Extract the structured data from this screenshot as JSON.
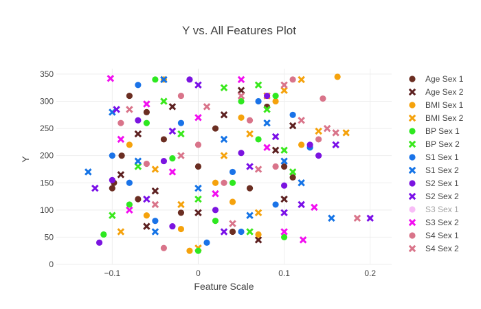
{
  "chart_data": {
    "type": "scatter",
    "title": "Y vs. All Features Plot",
    "xlabel": "Feature Scale",
    "ylabel": "Y",
    "xlim": [
      -0.165,
      0.225
    ],
    "ylim": [
      0,
      360
    ],
    "x_ticks": [
      -0.1,
      0,
      0.1,
      0.2
    ],
    "x_tick_labels": [
      "−0.1",
      "0",
      "0.1",
      "0.2"
    ],
    "y_ticks": [
      0,
      50,
      100,
      150,
      200,
      250,
      300,
      350
    ],
    "y_tick_labels": [
      "0",
      "50",
      "100",
      "150",
      "200",
      "250",
      "300",
      "350"
    ],
    "grid": true,
    "legend_position": "right",
    "series": [
      {
        "name": "Age Sex 1",
        "color": "#6b2e22",
        "symbol": "circle",
        "visible": true,
        "points": [
          [
            -0.098,
            150
          ],
          [
            -0.089,
            200
          ],
          [
            -0.08,
            310
          ],
          [
            -0.06,
            280
          ],
          [
            -0.04,
            230
          ],
          [
            -0.02,
            95
          ],
          [
            0.0,
            180
          ],
          [
            0.02,
            250
          ],
          [
            0.04,
            60
          ],
          [
            0.06,
            140
          ],
          [
            0.08,
            290
          ],
          [
            0.1,
            180
          ],
          [
            -0.1,
            140
          ],
          [
            0.11,
            160
          ],
          [
            -0.07,
            120
          ]
        ]
      },
      {
        "name": "Age Sex 2",
        "color": "#5c2020",
        "symbol": "x",
        "visible": true,
        "points": [
          [
            -0.09,
            165
          ],
          [
            -0.07,
            240
          ],
          [
            -0.05,
            135
          ],
          [
            -0.03,
            290
          ],
          [
            0.0,
            95
          ],
          [
            0.03,
            275
          ],
          [
            0.05,
            320
          ],
          [
            0.07,
            45
          ],
          [
            0.09,
            210
          ],
          [
            0.11,
            255
          ],
          [
            0.1,
            120
          ],
          [
            -0.06,
            70
          ]
        ]
      },
      {
        "name": "BMI Sex 1",
        "color": "#f5a20c",
        "symbol": "circle",
        "visible": true,
        "points": [
          [
            -0.08,
            220
          ],
          [
            -0.06,
            90
          ],
          [
            -0.04,
            340
          ],
          [
            -0.02,
            65
          ],
          [
            0.02,
            150
          ],
          [
            0.04,
            115
          ],
          [
            0.07,
            55
          ],
          [
            0.09,
            300
          ],
          [
            0.12,
            220
          ],
          [
            0.162,
            345
          ],
          [
            -0.01,
            25
          ],
          [
            0.05,
            270
          ]
        ]
      },
      {
        "name": "BMI Sex 2",
        "color": "#f5a20c",
        "symbol": "x",
        "visible": true,
        "points": [
          [
            -0.09,
            60
          ],
          [
            -0.05,
            175
          ],
          [
            0.0,
            30
          ],
          [
            0.03,
            200
          ],
          [
            0.06,
            240
          ],
          [
            0.08,
            310
          ],
          [
            0.1,
            320
          ],
          [
            0.12,
            340
          ],
          [
            0.14,
            245
          ],
          [
            0.172,
            242
          ],
          [
            -0.02,
            110
          ],
          [
            0.07,
            95
          ]
        ]
      },
      {
        "name": "BP Sex 1",
        "color": "#2ee820",
        "symbol": "circle",
        "visible": true,
        "points": [
          [
            -0.11,
            55
          ],
          [
            -0.08,
            110
          ],
          [
            -0.05,
            340
          ],
          [
            -0.03,
            195
          ],
          [
            0.0,
            25
          ],
          [
            0.02,
            80
          ],
          [
            0.05,
            300
          ],
          [
            0.07,
            230
          ],
          [
            0.09,
            310
          ],
          [
            0.1,
            50
          ],
          [
            -0.06,
            260
          ],
          [
            0.04,
            150
          ]
        ]
      },
      {
        "name": "BP Sex 2",
        "color": "#39e81c",
        "symbol": "x",
        "visible": true,
        "points": [
          [
            -0.1,
            90
          ],
          [
            -0.07,
            180
          ],
          [
            -0.04,
            300
          ],
          [
            0.0,
            120
          ],
          [
            0.03,
            325
          ],
          [
            0.06,
            60
          ],
          [
            0.08,
            285
          ],
          [
            0.1,
            210
          ],
          [
            0.11,
            170
          ],
          [
            -0.02,
            240
          ],
          [
            0.07,
            330
          ]
        ]
      },
      {
        "name": "S1 Sex 1",
        "color": "#1a73e8",
        "symbol": "circle",
        "visible": true,
        "points": [
          [
            -0.1,
            200
          ],
          [
            -0.08,
            150
          ],
          [
            -0.05,
            80
          ],
          [
            -0.02,
            260
          ],
          [
            0.01,
            40
          ],
          [
            0.04,
            170
          ],
          [
            0.07,
            300
          ],
          [
            0.09,
            110
          ],
          [
            0.11,
            275
          ],
          [
            0.13,
            215
          ],
          [
            -0.07,
            330
          ],
          [
            0.05,
            60
          ]
        ]
      },
      {
        "name": "S1 Sex 2",
        "color": "#1473e6",
        "symbol": "x",
        "visible": true,
        "points": [
          [
            -0.128,
            170
          ],
          [
            -0.1,
            280
          ],
          [
            -0.07,
            190
          ],
          [
            -0.04,
            340
          ],
          [
            0.0,
            140
          ],
          [
            0.03,
            230
          ],
          [
            0.06,
            90
          ],
          [
            0.08,
            260
          ],
          [
            0.1,
            190
          ],
          [
            0.12,
            150
          ],
          [
            0.155,
            85
          ],
          [
            -0.05,
            60
          ]
        ]
      },
      {
        "name": "S2 Sex 1",
        "color": "#7b14e0",
        "symbol": "circle",
        "visible": true,
        "points": [
          [
            -0.115,
            40
          ],
          [
            -0.1,
            155
          ],
          [
            -0.07,
            265
          ],
          [
            -0.04,
            190
          ],
          [
            -0.01,
            340
          ],
          [
            0.02,
            100
          ],
          [
            0.05,
            205
          ],
          [
            0.08,
            310
          ],
          [
            0.1,
            145
          ],
          [
            0.13,
            220
          ],
          [
            0.14,
            200
          ],
          [
            -0.03,
            70
          ]
        ]
      },
      {
        "name": "S2 Sex 2",
        "color": "#7a0fe8",
        "symbol": "x",
        "visible": true,
        "points": [
          [
            -0.12,
            140
          ],
          [
            -0.095,
            285
          ],
          [
            -0.06,
            120
          ],
          [
            -0.03,
            245
          ],
          [
            0.0,
            330
          ],
          [
            0.03,
            60
          ],
          [
            0.06,
            180
          ],
          [
            0.09,
            235
          ],
          [
            0.12,
            110
          ],
          [
            0.16,
            220
          ],
          [
            0.2,
            85
          ],
          [
            0.1,
            95
          ]
        ]
      },
      {
        "name": "S3 Sex 1",
        "color": "#f27ef0",
        "symbol": "circle",
        "visible": false,
        "points": []
      },
      {
        "name": "S3 Sex 2",
        "color": "#f20ff0",
        "symbol": "x",
        "visible": true,
        "points": [
          [
            -0.102,
            342
          ],
          [
            -0.09,
            230
          ],
          [
            -0.06,
            295
          ],
          [
            -0.03,
            170
          ],
          [
            0.0,
            270
          ],
          [
            0.02,
            130
          ],
          [
            0.05,
            340
          ],
          [
            0.08,
            215
          ],
          [
            0.1,
            60
          ],
          [
            0.122,
            45
          ],
          [
            0.135,
            105
          ],
          [
            -0.08,
            100
          ]
        ]
      },
      {
        "name": "S4 Sex 1",
        "color": "#d9748a",
        "symbol": "circle",
        "visible": true,
        "points": [
          [
            -0.09,
            260
          ],
          [
            -0.06,
            185
          ],
          [
            -0.04,
            30
          ],
          [
            0.0,
            220
          ],
          [
            0.03,
            150
          ],
          [
            0.06,
            265
          ],
          [
            0.09,
            180
          ],
          [
            0.11,
            340
          ],
          [
            0.145,
            305
          ],
          [
            0.14,
            230
          ],
          [
            -0.02,
            310
          ]
        ]
      },
      {
        "name": "S4 Sex 2",
        "color": "#d9748a",
        "symbol": "x",
        "visible": true,
        "points": [
          [
            -0.08,
            285
          ],
          [
            -0.05,
            110
          ],
          [
            -0.02,
            200
          ],
          [
            0.01,
            290
          ],
          [
            0.04,
            75
          ],
          [
            0.07,
            175
          ],
          [
            0.1,
            330
          ],
          [
            0.12,
            265
          ],
          [
            0.15,
            250
          ],
          [
            0.185,
            85
          ],
          [
            0.16,
            242
          ],
          [
            0.05,
            310
          ]
        ]
      }
    ]
  }
}
